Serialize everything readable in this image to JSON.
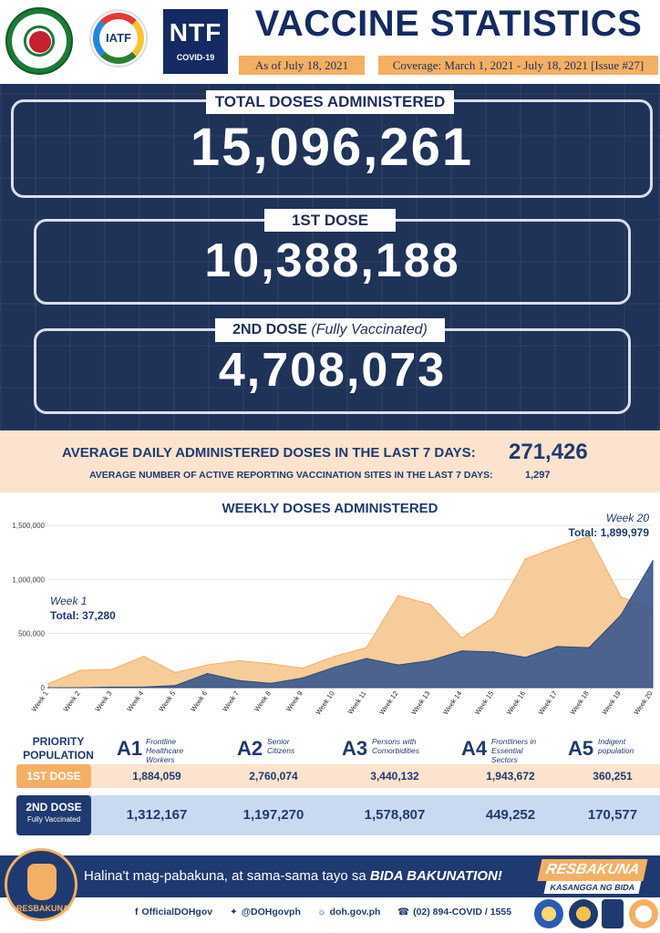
{
  "header": {
    "title": "VACCINE STATISTICS",
    "as_of": "As of July 18, 2021",
    "coverage": "Coverage: March 1, 2021 - July 18, 2021 [Issue #27]",
    "iatf_text": "IATF",
    "ntf_big": "NTF",
    "ntf_small": "COVID-19"
  },
  "stats": {
    "total_label": "TOTAL DOSES ADMINISTERED",
    "total_value": "15,096,261",
    "first_label": "1ST DOSE",
    "first_value": "10,388,188",
    "second_label": "2ND DOSE",
    "second_note": "(Fully Vaccinated)",
    "second_value": "4,708,073"
  },
  "average": {
    "daily_label": "AVERAGE DAILY ADMINISTERED DOSES IN THE LAST 7 DAYS:",
    "daily_value": "271,426",
    "sites_label": "AVERAGE NUMBER OF ACTIVE REPORTING VACCINATION SITES IN THE LAST 7 DAYS:",
    "sites_value": "1,297"
  },
  "chart_data": {
    "type": "area",
    "title": "WEEKLY DOSES ADMINISTERED",
    "x": [
      "Week 1",
      "Week 2",
      "Week 3",
      "Week 4",
      "Week 5",
      "Week 6",
      "Week 7",
      "Week 8",
      "Week 9",
      "Week 10",
      "Week 11",
      "Week 12",
      "Week 13",
      "Week 14",
      "Week 15",
      "Week 16",
      "Week 17",
      "Week 18",
      "Week 19",
      "Week 20"
    ],
    "series": [
      {
        "values": [
          37280,
          160000,
          170000,
          290000,
          140000,
          210000,
          250000,
          220000,
          180000,
          290000,
          370000,
          850000,
          770000,
          460000,
          650000,
          1190000,
          1300000,
          1400000,
          840000,
          730000
        ],
        "color": "#f6c995"
      },
      {
        "values": [
          0,
          0,
          5000,
          5000,
          20000,
          130000,
          65000,
          40000,
          90000,
          190000,
          270000,
          210000,
          250000,
          340000,
          330000,
          280000,
          380000,
          370000,
          670000,
          1170000
        ],
        "color": "#3d5a8c"
      }
    ],
    "ylim": [
      0,
      1500000
    ],
    "yticks": [
      "0",
      "500,000",
      "1,000,000",
      "1,500,000"
    ],
    "ytick_values": [
      0,
      500000,
      1000000,
      1500000
    ],
    "annotations": {
      "first_week": "Week 1",
      "first_total": "Total: 37,280",
      "last_week": "Week 20",
      "last_total": "Total: 1,899,979"
    }
  },
  "priority": {
    "header": "PRIORITY POPULATION",
    "categories": [
      {
        "code": "A1",
        "desc": "Frontline Healthcare Workers"
      },
      {
        "code": "A2",
        "desc": "Senior Citizens"
      },
      {
        "code": "A3",
        "desc": "Persons with Comorbidities"
      },
      {
        "code": "A4",
        "desc": "Frontliners in Essential Sectors"
      },
      {
        "code": "A5",
        "desc": "Indigent population"
      }
    ],
    "first_dose_label": "1ST DOSE",
    "first_dose": [
      "1,884,059",
      "2,760,074",
      "3,440,132",
      "1,943,672",
      "360,251"
    ],
    "second_dose_label": "2ND DOSE",
    "second_dose_note": "Fully Vaccinated",
    "second_dose": [
      "1,312,167",
      "1,197,270",
      "1,578,807",
      "449,252",
      "170,577"
    ]
  },
  "footer": {
    "message_plain": "Halina't mag-pabakuna, at sama-sama tayo sa ",
    "message_bold": "BIDA BAKUNATION!",
    "resbakuna": "RESBAKUNA",
    "resbakuna_sub": "KASANGGA NG BIDA",
    "mascot_label": "RESBAKUNA",
    "facebook": "OfficialDOHgov",
    "twitter": "@DOHgovph",
    "website": "doh.gov.ph",
    "hotline": "(02) 894-COVID  /  1555"
  },
  "colors": {
    "navy": "#1f3358",
    "accent": "#f3b064",
    "first_dose_area": "#f6c995",
    "second_dose_area": "#3d5a8c"
  }
}
